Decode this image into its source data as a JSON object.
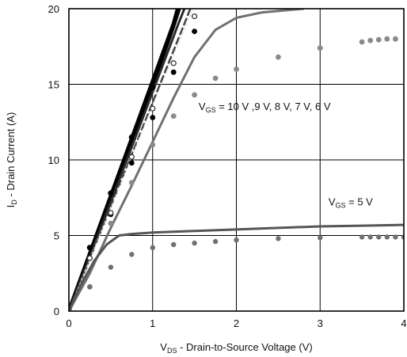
{
  "chart_data": {
    "type": "line",
    "title": "",
    "xlabel": {
      "main": "V",
      "sub": "DS",
      "rest": " - Drain-to-Source Voltage (V)"
    },
    "ylabel": {
      "main": "I",
      "sub": "D",
      "rest": " - Drain Current (A)"
    },
    "xlim": [
      0,
      4
    ],
    "ylim": [
      0,
      20
    ],
    "xticks": [
      "0",
      "1",
      "2",
      "3",
      "4"
    ],
    "yticks": [
      "0",
      "5",
      "10",
      "15",
      "20"
    ],
    "grid": true,
    "annotations": [
      {
        "id": "vgs-high",
        "main": "V",
        "sub": "GS",
        "rest": " = 10 V ,9 V, 8 V, 7 V, 6 V",
        "x": 1.55,
        "y": 13.3
      },
      {
        "id": "vgs-5",
        "main": "V",
        "sub": "GS",
        "rest": " = 5 V",
        "x": 3.1,
        "y": 7.0
      }
    ],
    "series": [
      {
        "id": "vgs10-line",
        "color": "#000000",
        "width": 5,
        "dash": "",
        "points": [
          [
            0,
            0
          ],
          [
            0.5,
            7.6
          ],
          [
            1.0,
            15.2
          ],
          [
            1.25,
            19.0
          ],
          [
            1.3,
            20.0
          ]
        ]
      },
      {
        "id": "vgs9-line",
        "color": "#000000",
        "width": 4,
        "dash": "",
        "points": [
          [
            0,
            0
          ],
          [
            0.5,
            7.4
          ],
          [
            1.0,
            14.9
          ],
          [
            1.25,
            18.8
          ],
          [
            1.32,
            20.0
          ]
        ]
      },
      {
        "id": "vgs8-line",
        "color": "#2a2a2a",
        "width": 3,
        "dash": "",
        "points": [
          [
            0,
            0
          ],
          [
            0.5,
            7.2
          ],
          [
            1.0,
            14.5
          ],
          [
            1.3,
            18.9
          ],
          [
            1.38,
            20.0
          ]
        ]
      },
      {
        "id": "vgs7-line",
        "color": "#444444",
        "width": 2.5,
        "dash": "8,5",
        "points": [
          [
            0,
            0
          ],
          [
            0.5,
            6.9
          ],
          [
            1.0,
            13.8
          ],
          [
            1.35,
            18.6
          ],
          [
            1.45,
            20.0
          ]
        ]
      },
      {
        "id": "vgs7w-line",
        "color": "#dddddd",
        "width": 1.2,
        "dash": "3,3",
        "points": [
          [
            0,
            0
          ],
          [
            0.5,
            6.8
          ],
          [
            1.0,
            13.6
          ],
          [
            1.4,
            18.9
          ],
          [
            1.48,
            20.0
          ]
        ]
      },
      {
        "id": "vgs6-line",
        "color": "#707070",
        "width": 3,
        "dash": "",
        "points": [
          [
            0,
            0
          ],
          [
            0.25,
            2.5
          ],
          [
            0.5,
            5.5
          ],
          [
            0.75,
            8.3
          ],
          [
            1.0,
            11.2
          ],
          [
            1.25,
            14.1
          ],
          [
            1.5,
            16.8
          ],
          [
            1.75,
            18.6
          ],
          [
            2.0,
            19.4
          ],
          [
            2.3,
            19.75
          ],
          [
            2.6,
            19.9
          ],
          [
            2.8,
            20.0
          ]
        ]
      },
      {
        "id": "vgs5-line",
        "color": "#555555",
        "width": 3,
        "dash": "",
        "points": [
          [
            0,
            0
          ],
          [
            0.15,
            1.8
          ],
          [
            0.3,
            3.3
          ],
          [
            0.45,
            4.4
          ],
          [
            0.6,
            5.0
          ],
          [
            0.75,
            5.1
          ],
          [
            1.0,
            5.2
          ],
          [
            1.5,
            5.3
          ],
          [
            2.0,
            5.4
          ],
          [
            2.5,
            5.5
          ],
          [
            3.0,
            5.6
          ],
          [
            3.5,
            5.65
          ],
          [
            4.0,
            5.7
          ]
        ]
      }
    ],
    "scatter": [
      {
        "id": "vgs10-dots",
        "color": "#000000",
        "stroke": "",
        "r": 3.6,
        "points": [
          [
            0.25,
            4.2
          ],
          [
            0.5,
            7.8
          ],
          [
            0.75,
            11.5
          ],
          [
            1.0,
            14.8
          ]
        ]
      },
      {
        "id": "vgs9-dots",
        "color": "#000000",
        "stroke": "",
        "r": 3.4,
        "points": [
          [
            0.5,
            6.4
          ],
          [
            0.75,
            9.8
          ],
          [
            1.0,
            12.8
          ],
          [
            1.25,
            15.8
          ],
          [
            1.5,
            18.5
          ]
        ]
      },
      {
        "id": "vgs7-open-dots",
        "color": "#ffffff",
        "stroke": "#333333",
        "r": 3.0,
        "points": [
          [
            0.25,
            3.5
          ],
          [
            0.5,
            6.5
          ],
          [
            0.75,
            10.2
          ],
          [
            1.0,
            13.4
          ],
          [
            1.25,
            16.4
          ],
          [
            1.5,
            19.5
          ]
        ]
      },
      {
        "id": "vgs6-dots",
        "color": "#8a8a8a",
        "stroke": "",
        "r": 3.4,
        "points": [
          [
            0.25,
            1.6
          ],
          [
            0.5,
            5.8
          ],
          [
            0.75,
            8.5
          ],
          [
            1.0,
            11.0
          ],
          [
            1.25,
            12.9
          ],
          [
            1.5,
            14.3
          ],
          [
            1.75,
            15.4
          ],
          [
            2.0,
            16.0
          ],
          [
            2.5,
            16.8
          ],
          [
            3.0,
            17.4
          ],
          [
            3.5,
            17.8
          ],
          [
            3.6,
            17.9
          ],
          [
            3.7,
            17.95
          ],
          [
            3.8,
            18.0
          ],
          [
            3.9,
            18.0
          ]
        ]
      },
      {
        "id": "vgs5-dots",
        "color": "#707070",
        "stroke": "",
        "r": 3.2,
        "points": [
          [
            0.25,
            1.6
          ],
          [
            0.5,
            2.9
          ],
          [
            0.75,
            3.75
          ],
          [
            1.0,
            4.2
          ],
          [
            1.25,
            4.4
          ],
          [
            1.5,
            4.5
          ],
          [
            1.75,
            4.6
          ],
          [
            2.0,
            4.7
          ],
          [
            2.5,
            4.8
          ],
          [
            3.0,
            4.85
          ],
          [
            3.5,
            4.9
          ],
          [
            3.6,
            4.9
          ],
          [
            3.7,
            4.9
          ],
          [
            3.8,
            4.9
          ],
          [
            3.9,
            4.9
          ],
          [
            4.0,
            4.9
          ]
        ]
      }
    ]
  }
}
